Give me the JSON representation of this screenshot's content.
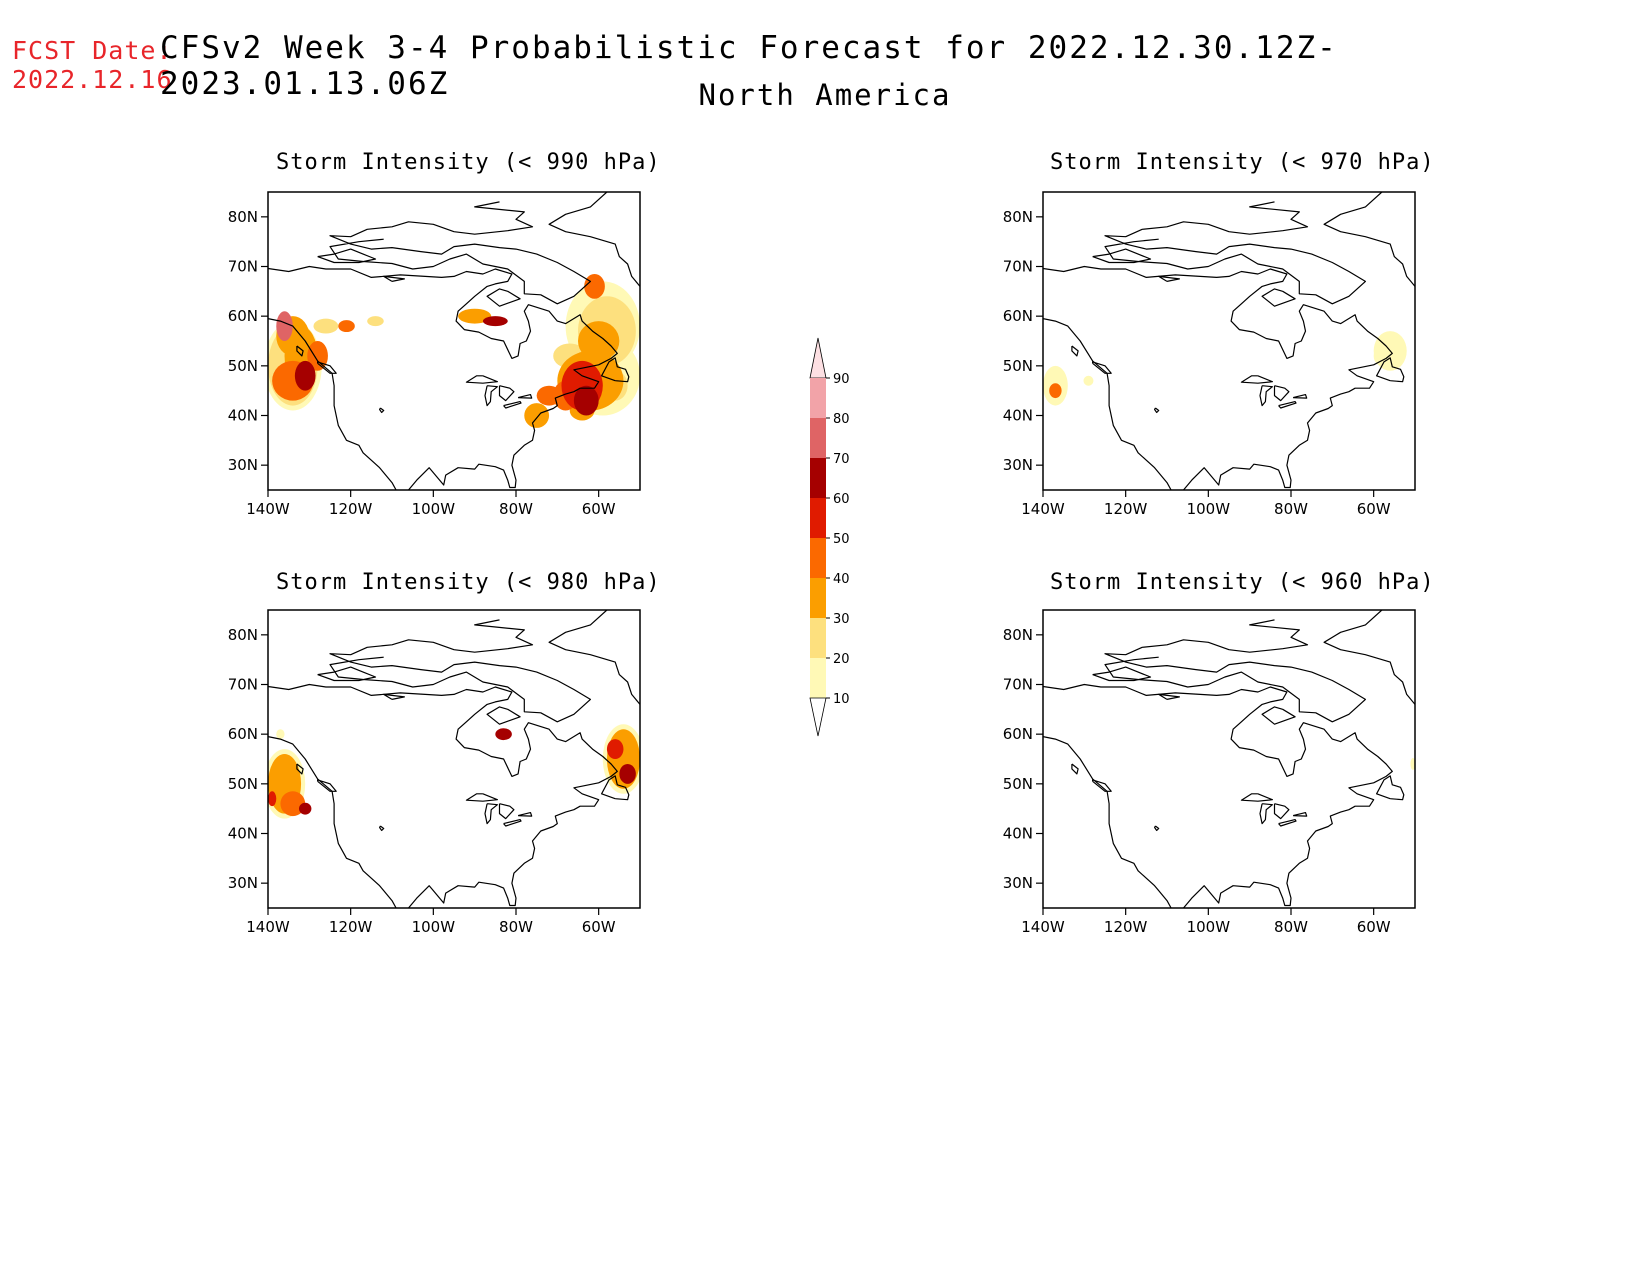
{
  "header": {
    "fcst_label": "FCST Date:",
    "fcst_date": "2022.12.16",
    "title": "CFSv2 Week 3-4 Probabilistic Forecast for 2022.12.30.12Z-2023.01.13.06Z",
    "region": "North America"
  },
  "axes": {
    "lon_labels": [
      "140W",
      "120W",
      "100W",
      "80W",
      "60W"
    ],
    "lat_labels": [
      "80N",
      "70N",
      "60N",
      "50N",
      "40N",
      "30N"
    ]
  },
  "colorbar": {
    "levels": [
      "90",
      "80",
      "70",
      "60",
      "50",
      "40",
      "30",
      "20",
      "10"
    ],
    "colors": [
      "#fde0e3",
      "#f2a3a8",
      "#df6465",
      "#a50000",
      "#e01b00",
      "#fb6900",
      "#fb9e00",
      "#fde07e",
      "#fff9b6"
    ]
  },
  "panels": [
    {
      "id": "p990",
      "title": "Storm Intensity (< 990 hPa)"
    },
    {
      "id": "p970",
      "title": "Storm Intensity (< 970 hPa)"
    },
    {
      "id": "p980",
      "title": "Storm Intensity (< 980 hPa)"
    },
    {
      "id": "p960",
      "title": "Storm Intensity (< 960 hPa)"
    }
  ]
}
